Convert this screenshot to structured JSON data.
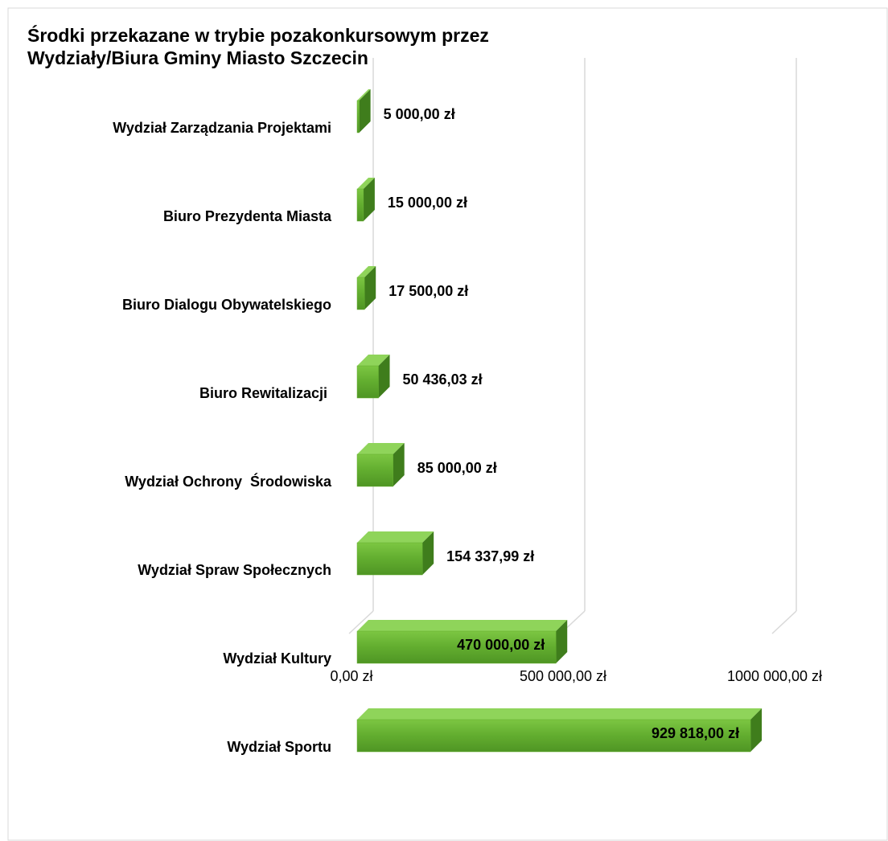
{
  "chart_data": {
    "type": "bar3d-horizontal",
    "title": [
      "Środki przekazane w trybie pozakonkursowym przez",
      "Wydziały/Biura Gminy Miasto Szczecin"
    ],
    "categories": [
      "Wydział Zarządzania Projektami",
      "Biuro Prezydenta Miasta",
      "Biuro Dialogu Obywatelskiego",
      "Biuro Rewitalizacji ",
      "Wydział Ochrony  Środowiska",
      "Wydział Spraw Społecznych",
      "Wydział Kultury",
      "Wydział Sportu"
    ],
    "values": [
      5000,
      15000,
      17500,
      50436.03,
      85000,
      154337.99,
      470000,
      929818
    ],
    "value_labels": [
      "5 000,00 zł",
      "15 000,00 zł",
      "17 500,00 zł",
      "50 436,03 zł",
      "85 000,00 zł",
      "154 337,99 zł",
      "470 000,00 zł",
      "929 818,00 zł"
    ],
    "color": "#62ad2f",
    "xlim": [
      0,
      1000000
    ],
    "xticks": [
      {
        "value": 0,
        "label": "0,00 zł"
      },
      {
        "value": 500000,
        "label": "500 000,00 zł"
      },
      {
        "value": 1000000,
        "label": "1000 000,00 zł"
      }
    ],
    "grid": true
  }
}
